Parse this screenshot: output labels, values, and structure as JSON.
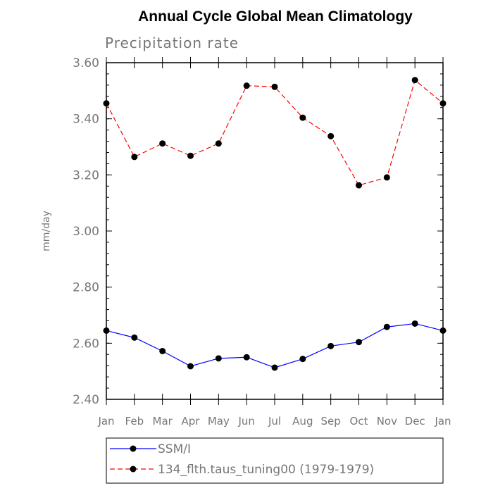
{
  "chart_data": {
    "type": "line",
    "title": "Annual Cycle Global Mean Climatology",
    "subtitle": "Precipitation rate",
    "xlabel": "",
    "ylabel": "mm/day",
    "categories": [
      "Jan",
      "Feb",
      "Mar",
      "Apr",
      "May",
      "Jun",
      "Jul",
      "Aug",
      "Sep",
      "Oct",
      "Nov",
      "Dec",
      "Jan"
    ],
    "ylim": [
      2.4,
      3.6
    ],
    "yticks": [
      "2.40",
      "2.60",
      "2.80",
      "3.00",
      "3.20",
      "3.40",
      "3.60"
    ],
    "grid": false,
    "legend_position": "bottom",
    "series": [
      {
        "name": "SSM/I",
        "color": "#0000ff",
        "line_style": "solid",
        "marker": "filled-circle",
        "values": [
          2.645,
          2.62,
          2.572,
          2.518,
          2.546,
          2.55,
          2.513,
          2.544,
          2.59,
          2.604,
          2.658,
          2.67,
          2.645
        ]
      },
      {
        "name": "134_flth.taus_tuning00 (1979-1979)",
        "color": "#ff0000",
        "line_style": "dashed",
        "marker": "filled-circle",
        "values": [
          3.455,
          3.264,
          3.312,
          3.268,
          3.312,
          3.518,
          3.514,
          3.404,
          3.338,
          3.163,
          3.191,
          3.538,
          3.455
        ]
      }
    ]
  }
}
